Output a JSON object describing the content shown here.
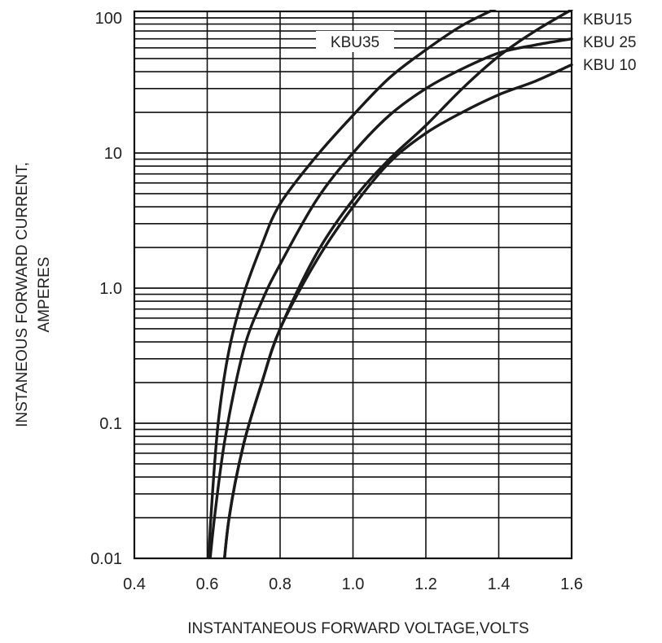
{
  "chart_data": {
    "type": "line",
    "title": "",
    "xlabel": "INSTANTANEOUS FORWARD VOLTAGE,VOLTS",
    "ylabel_lines": [
      "INSTANEOUS FORWARD CURRENT,",
      "AMPERES"
    ],
    "xlim": [
      0.4,
      1.6
    ],
    "ylim": [
      0.01,
      120
    ],
    "yscale": "log",
    "grid": true,
    "x_ticks": [
      "0.4",
      "0.6",
      "0.8",
      "1.0",
      "1.2",
      "1.4",
      "1.6"
    ],
    "y_ticks": [
      {
        "value": 100,
        "label": "100"
      },
      {
        "value": 10,
        "label": "10"
      },
      {
        "value": 1,
        "label": "1.0"
      },
      {
        "value": 0.1,
        "label": "0.1"
      },
      {
        "value": 0.01,
        "label": "0.01"
      }
    ],
    "series": [
      {
        "name": "KBU35",
        "label_placement": "inline",
        "points": [
          [
            0.6,
            0.006
          ],
          [
            0.61,
            0.02
          ],
          [
            0.63,
            0.1
          ],
          [
            0.66,
            0.35
          ],
          [
            0.7,
            0.9
          ],
          [
            0.75,
            2.1
          ],
          [
            0.8,
            4.2
          ],
          [
            0.9,
            9.5
          ],
          [
            1.0,
            19
          ],
          [
            1.1,
            36
          ],
          [
            1.2,
            58
          ],
          [
            1.3,
            88
          ],
          [
            1.4,
            120
          ]
        ]
      },
      {
        "name": "KBU15",
        "label_placement": "right",
        "points": [
          [
            0.64,
            0.006
          ],
          [
            0.66,
            0.02
          ],
          [
            0.7,
            0.07
          ],
          [
            0.75,
            0.2
          ],
          [
            0.8,
            0.5
          ],
          [
            0.9,
            1.8
          ],
          [
            1.0,
            4.5
          ],
          [
            1.1,
            9
          ],
          [
            1.2,
            16
          ],
          [
            1.3,
            30
          ],
          [
            1.4,
            52
          ],
          [
            1.5,
            80
          ],
          [
            1.6,
            115
          ]
        ]
      },
      {
        "name": "KBU 25",
        "label_placement": "right",
        "points": [
          [
            0.6,
            0.006
          ],
          [
            0.62,
            0.02
          ],
          [
            0.65,
            0.08
          ],
          [
            0.7,
            0.35
          ],
          [
            0.75,
            0.8
          ],
          [
            0.8,
            1.5
          ],
          [
            0.9,
            4.5
          ],
          [
            1.0,
            10
          ],
          [
            1.1,
            19
          ],
          [
            1.2,
            30
          ],
          [
            1.3,
            42
          ],
          [
            1.4,
            55
          ],
          [
            1.5,
            63
          ],
          [
            1.6,
            70
          ]
        ]
      },
      {
        "name": "KBU 10",
        "label_placement": "right",
        "points": [
          [
            0.64,
            0.006
          ],
          [
            0.66,
            0.02
          ],
          [
            0.7,
            0.07
          ],
          [
            0.75,
            0.2
          ],
          [
            0.8,
            0.5
          ],
          [
            0.9,
            1.6
          ],
          [
            1.0,
            4
          ],
          [
            1.1,
            8.5
          ],
          [
            1.2,
            14
          ],
          [
            1.3,
            20
          ],
          [
            1.4,
            27
          ],
          [
            1.5,
            34
          ],
          [
            1.6,
            45
          ]
        ]
      }
    ]
  }
}
